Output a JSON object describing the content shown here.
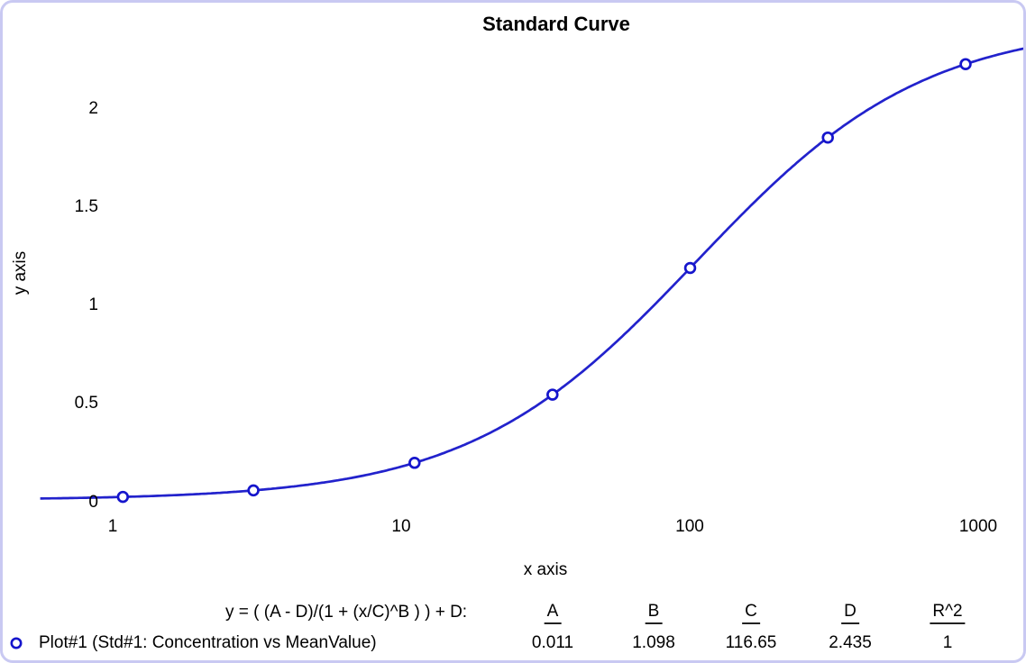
{
  "title": "Standard Curve",
  "axes": {
    "x_label": "x axis",
    "y_label": "y axis",
    "x_ticks": [
      "1",
      "10",
      "100",
      "1000"
    ],
    "y_ticks": [
      "0",
      "0.5",
      "1",
      "1.5",
      "2"
    ]
  },
  "fit": {
    "equation": "y = ( (A - D)/(1 + (x/C)^B ) ) + D:",
    "columns": [
      "A",
      "B",
      "C",
      "D",
      "R^2"
    ],
    "values": [
      "0.011",
      "1.098",
      "116.65",
      "2.435",
      "1"
    ],
    "legend_label": "Plot#1 (Std#1: Concentration vs MeanValue)"
  },
  "chart_data": {
    "type": "scatter",
    "title": "Standard Curve",
    "xlabel": "x axis",
    "ylabel": "y axis",
    "x_scale": "log",
    "xlim": [
      0.6,
      1650
    ],
    "ylim": [
      0,
      2.35
    ],
    "grid": false,
    "legend_position": "bottom-left",
    "series_name": "Plot#1 (Std#1: Concentration vs MeanValue)",
    "x": [
      1.2,
      3.4,
      12.3,
      37,
      111,
      333,
      1000
    ],
    "y": [
      0.03,
      0.06,
      0.2,
      0.55,
      1.19,
      1.85,
      2.23
    ],
    "fit_type": "4PL sigmoidal",
    "fit_params": {
      "A": 0.011,
      "B": 1.098,
      "C": 116.65,
      "D": 2.435,
      "R2": 1
    }
  },
  "colors": {
    "curve": "#2222cc",
    "marker": "#1515cc",
    "text": "#000000",
    "border": "#c9c9f2"
  }
}
